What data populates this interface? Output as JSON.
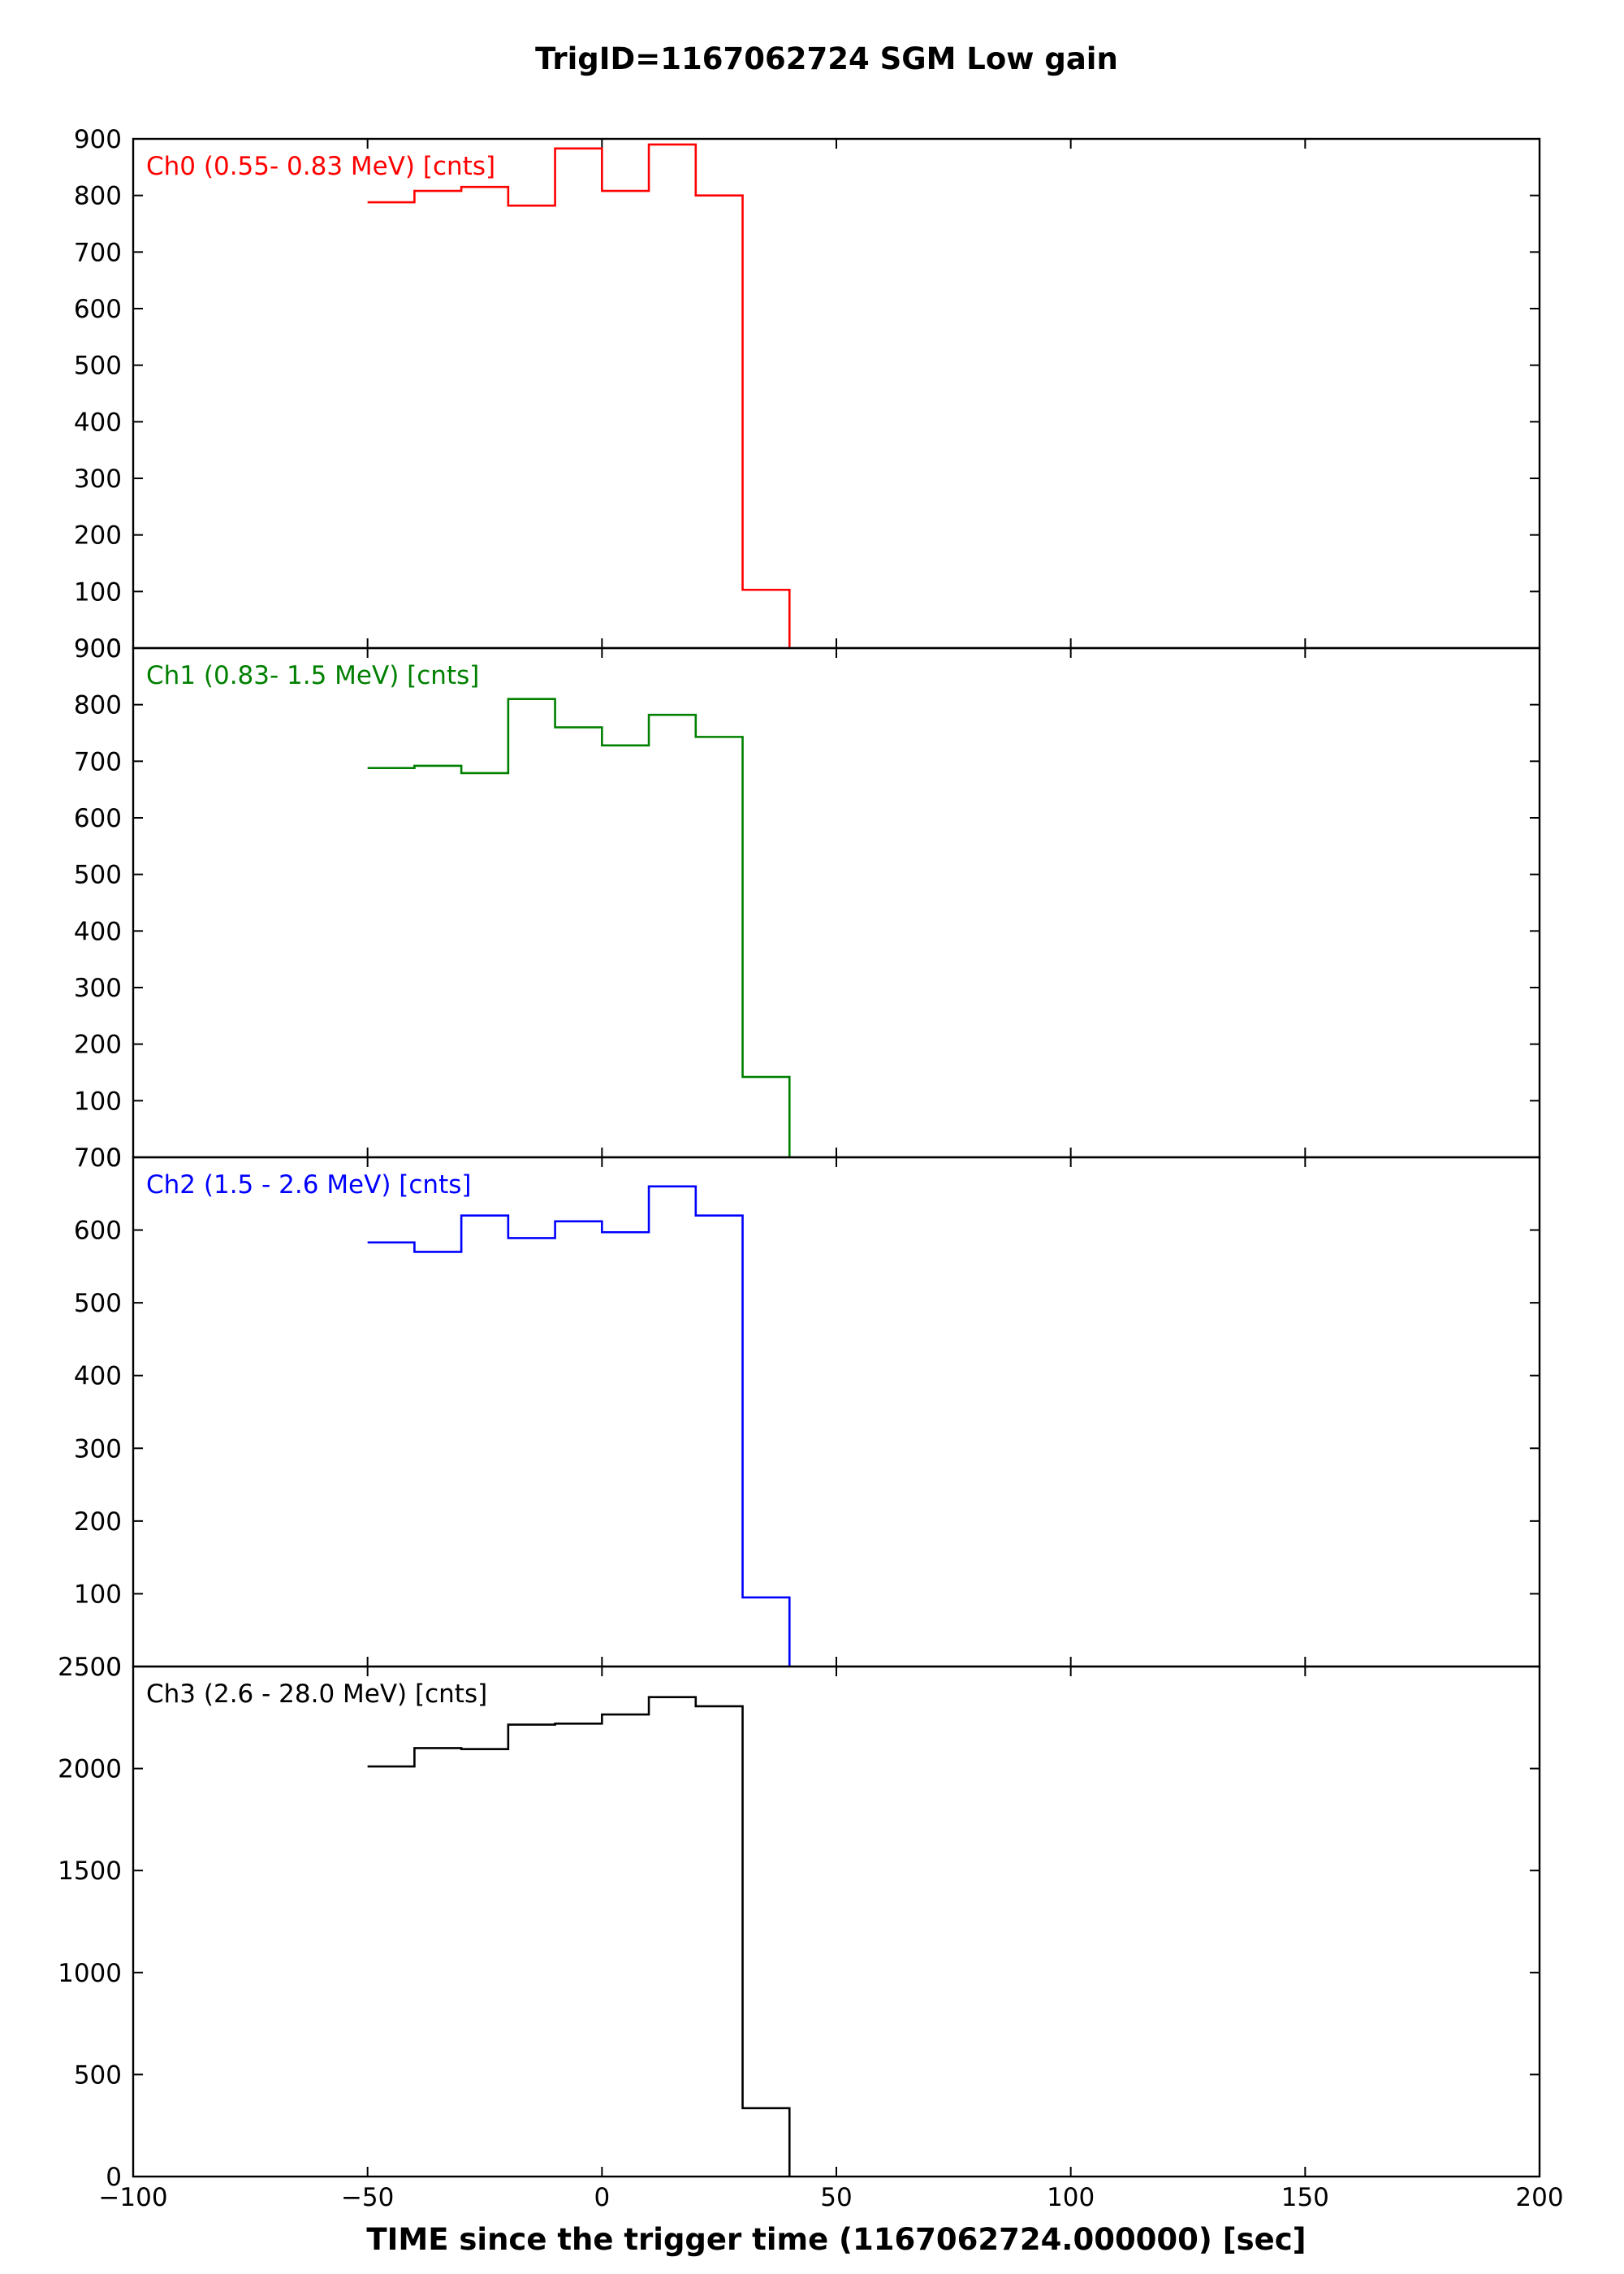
{
  "title": "TrigID=1167062724 SGM Low gain",
  "xlabel": "TIME since the trigger time (1167062724.000000) [sec]",
  "chart_data": {
    "type": "line",
    "title": "TrigID=1167062724 SGM Low gain",
    "xlabel": "TIME since the trigger time (1167062724.000000) [sec]",
    "xlim": [
      -100,
      200
    ],
    "xticks": [
      -100,
      -50,
      0,
      50,
      100,
      150,
      200
    ],
    "xtick_labels": [
      "−100",
      "−50",
      "0",
      "50",
      "100",
      "150",
      "200"
    ],
    "drawstyle": "steps-post",
    "bin_edges": [
      -50,
      -40,
      -30,
      -20,
      -10,
      0,
      10,
      20,
      30,
      40
    ],
    "panels": [
      {
        "label": "Ch0 (0.55- 0.83 MeV) [cnts]",
        "color": "#ff0000",
        "ylim": [
          0,
          900
        ],
        "yticks": [
          0,
          100,
          200,
          300,
          400,
          500,
          600,
          700,
          800,
          900
        ],
        "values": [
          788,
          808,
          815,
          782,
          883,
          808,
          890,
          800,
          103
        ]
      },
      {
        "label": "Ch1 (0.83-  1.5 MeV) [cnts]",
        "color": "#008000",
        "ylim": [
          0,
          900
        ],
        "yticks": [
          0,
          100,
          200,
          300,
          400,
          500,
          600,
          700,
          800,
          900
        ],
        "values": [
          688,
          692,
          679,
          810,
          760,
          728,
          782,
          743,
          142
        ]
      },
      {
        "label": "Ch2 (1.5 -  2.6 MeV) [cnts]",
        "color": "#0000ff",
        "ylim": [
          0,
          700
        ],
        "yticks": [
          0,
          100,
          200,
          300,
          400,
          500,
          600,
          700
        ],
        "values": [
          583,
          570,
          620,
          589,
          612,
          597,
          660,
          620,
          95
        ]
      },
      {
        "label": "Ch3 (2.6 - 28.0 MeV) [cnts]",
        "color": "#000000",
        "ylim": [
          0,
          2500
        ],
        "yticks": [
          0,
          500,
          1000,
          1500,
          2000,
          2500
        ],
        "values": [
          2010,
          2100,
          2095,
          2215,
          2220,
          2265,
          2350,
          2305,
          335
        ]
      }
    ]
  }
}
